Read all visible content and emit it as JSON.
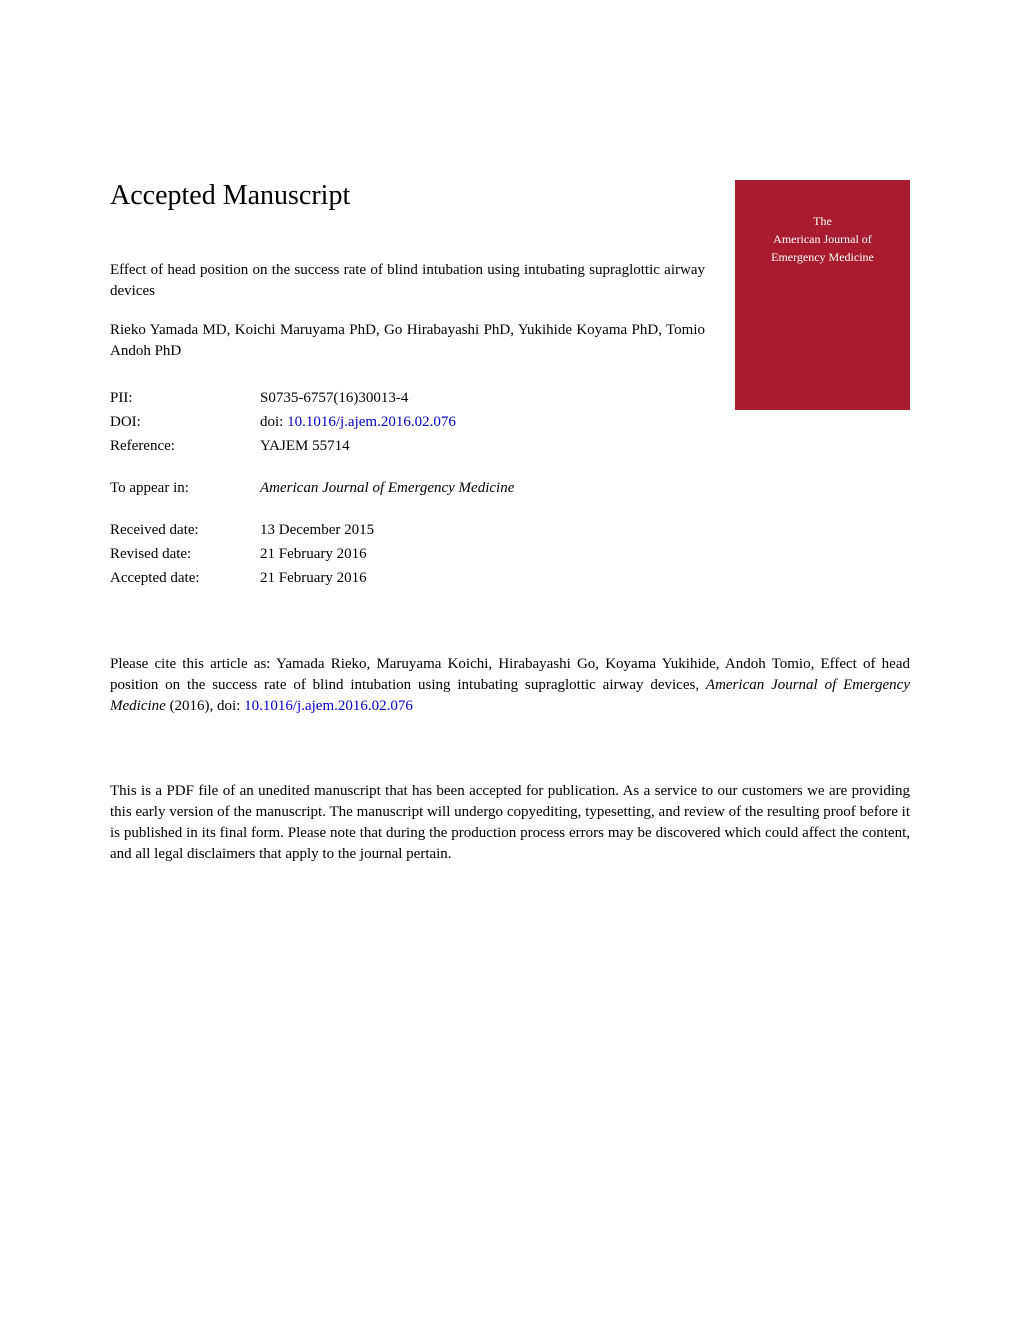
{
  "page": {
    "heading": "Accepted Manuscript",
    "title": "Effect of head position on the success rate of blind intubation using intubating supraglottic airway devices",
    "authors": "Rieko Yamada MD, Koichi Maruyama PhD, Go Hirabayashi PhD, Yukihide Koyama PhD, Tomio Andoh PhD"
  },
  "journal_cover": {
    "line1": "The",
    "line2": "American Journal of",
    "line3": "Emergency Medicine",
    "background_color": "#a91b2e",
    "text_color": "#ffffff"
  },
  "metadata": {
    "pii_label": "PII:",
    "pii_value": "S0735-6757(16)30013-4",
    "doi_label": "DOI:",
    "doi_prefix": "doi: ",
    "doi_value": "10.1016/j.ajem.2016.02.076",
    "reference_label": "Reference:",
    "reference_value": "YAJEM 55714",
    "appear_label": "To appear in:",
    "appear_value": "American Journal of Emergency Medicine",
    "received_label": "Received date:",
    "received_value": "13 December 2015",
    "revised_label": "Revised date:",
    "revised_value": "21 February 2016",
    "accepted_label": "Accepted date:",
    "accepted_value": "21 February 2016"
  },
  "citation": {
    "prefix": "Please cite this article as: Yamada Rieko, Maruyama Koichi, Hirabayashi Go, Koyama Yukihide, Andoh Tomio, Effect of head position on the success rate of blind intubation using intubating supraglottic airway devices, ",
    "journal": "American Journal of Emergency Medicine",
    "year": " (2016),  doi: ",
    "doi": "10.1016/j.ajem.2016.02.076"
  },
  "disclaimer": "This is a PDF file of an unedited manuscript that has been accepted for publication. As a service to our customers we are providing this early version of the manuscript. The manuscript will undergo copyediting, typesetting, and review of the resulting proof before it is published in its final form. Please note that during the production process errors may be discovered which could affect the content, and all legal disclaimers that apply to the journal pertain.",
  "colors": {
    "link_color": "#0000cc",
    "text_color": "#000000",
    "background_color": "#ffffff"
  },
  "typography": {
    "heading_fontsize": 28,
    "body_fontsize": 15,
    "cover_fontsize": 12
  }
}
